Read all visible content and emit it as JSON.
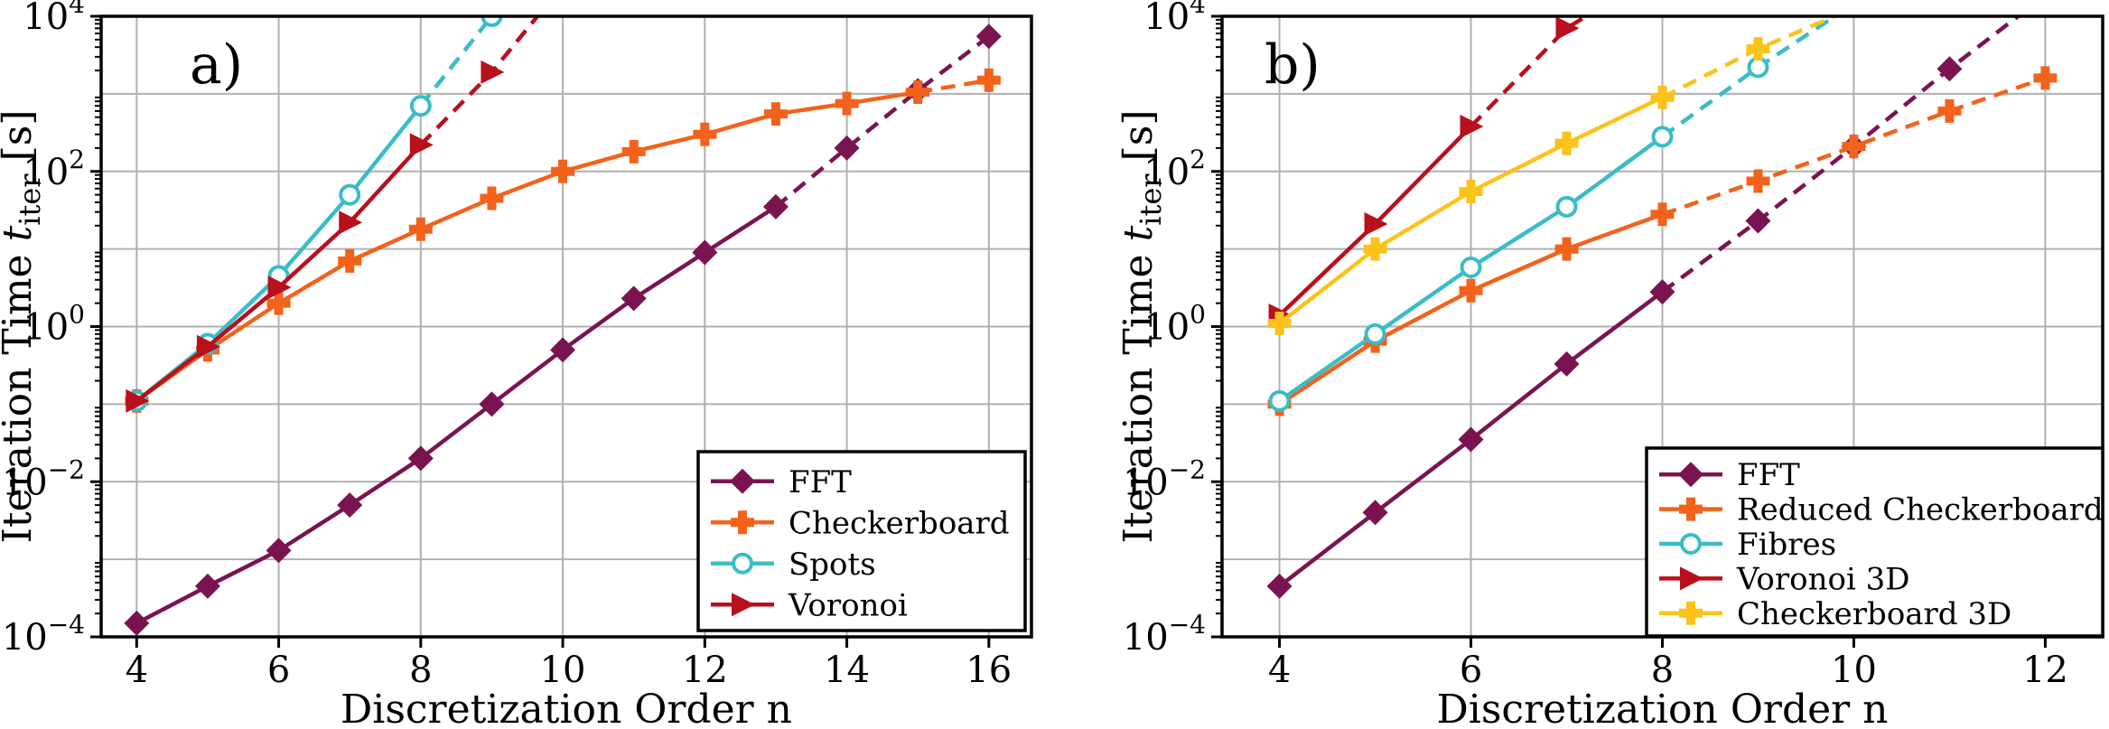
{
  "chart_data": [
    {
      "type": "line",
      "panel_label": "a)",
      "xlabel": "Discretization Order n",
      "ylabel": "Iteration Time t_iter [s]",
      "ylabel_parts": {
        "prefix": "Iteration Time ",
        "var": "t",
        "sub": "iter",
        "suffix": " [s]"
      },
      "y_scale": "log",
      "xlim": [
        3.5,
        16.6
      ],
      "ylim": [
        0.0001,
        10000
      ],
      "x_ticks": [
        4,
        6,
        8,
        10,
        12,
        14,
        16
      ],
      "y_ticks": [
        {
          "base": "10",
          "exp": "−4",
          "value": 0.0001
        },
        {
          "base": "10",
          "exp": "−2",
          "value": 0.01
        },
        {
          "base": "10",
          "exp": "0",
          "value": 1
        },
        {
          "base": "10",
          "exp": "2",
          "value": 100
        },
        {
          "base": "10",
          "exp": "4",
          "value": 10000
        }
      ],
      "grid": true,
      "legend_position": "bottom-right",
      "series": [
        {
          "name": "FFT",
          "color": "#7a1450",
          "marker": "diamond",
          "x": [
            4,
            5,
            6,
            7,
            8,
            9,
            10,
            11,
            12,
            13,
            14,
            15,
            16
          ],
          "y": [
            0.00015,
            0.00045,
            0.0013,
            0.005,
            0.02,
            0.1,
            0.5,
            2.3,
            9,
            35,
            200,
            1100,
            5500
          ],
          "solid_until": 13
        },
        {
          "name": "Checkerboard",
          "color": "#f3621b",
          "marker": "plus",
          "x": [
            4,
            5,
            6,
            7,
            8,
            9,
            10,
            11,
            12,
            13,
            14,
            15,
            16
          ],
          "y": [
            0.11,
            0.5,
            2,
            7,
            18,
            45,
            100,
            180,
            300,
            550,
            750,
            1050,
            1500
          ],
          "solid_until": 15
        },
        {
          "name": "Spots",
          "color": "#3bbcc8",
          "marker": "circle",
          "x": [
            4,
            5,
            6,
            7,
            8,
            9
          ],
          "y": [
            0.11,
            0.6,
            4.5,
            50,
            700,
            10000
          ],
          "solid_until": 8,
          "extension": {
            "x": 9.2,
            "y": 17000
          }
        },
        {
          "name": "Voronoi",
          "color": "#b8101c",
          "marker": "triangle-right",
          "x": [
            4,
            5,
            6,
            7,
            8,
            9
          ],
          "y": [
            0.11,
            0.55,
            3.2,
            22,
            220,
            1900
          ],
          "solid_until": 8,
          "extension": {
            "x": 9.85,
            "y": 17000
          }
        }
      ]
    },
    {
      "type": "line",
      "panel_label": "b)",
      "xlabel": "Discretization Order n",
      "ylabel": "Iteration Time t_iter [s]",
      "ylabel_parts": {
        "prefix": "Iteration Time ",
        "var": "t",
        "sub": "iter",
        "suffix": " [s]"
      },
      "y_scale": "log",
      "xlim": [
        3.4,
        12.6
      ],
      "ylim": [
        0.0001,
        10000
      ],
      "x_ticks": [
        4,
        6,
        8,
        10,
        12
      ],
      "y_ticks": [
        {
          "base": "10",
          "exp": "−4",
          "value": 0.0001
        },
        {
          "base": "10",
          "exp": "−2",
          "value": 0.01
        },
        {
          "base": "10",
          "exp": "0",
          "value": 1
        },
        {
          "base": "10",
          "exp": "2",
          "value": 100
        },
        {
          "base": "10",
          "exp": "4",
          "value": 10000
        }
      ],
      "grid": true,
      "legend_position": "bottom-right",
      "series": [
        {
          "name": "FFT",
          "color": "#7a1450",
          "marker": "diamond",
          "x": [
            4,
            5,
            6,
            7,
            8,
            9,
            10,
            11
          ],
          "y": [
            0.00045,
            0.004,
            0.035,
            0.33,
            2.8,
            23,
            210,
            2100
          ],
          "solid_until": 8,
          "extension": {
            "x": 11.8,
            "y": 12000
          }
        },
        {
          "name": "Reduced Checkerboard",
          "color": "#f3621b",
          "marker": "plus",
          "x": [
            4,
            5,
            6,
            7,
            8,
            9,
            10,
            11,
            12
          ],
          "y": [
            0.1,
            0.65,
            2.9,
            10,
            28,
            75,
            210,
            600,
            1600
          ],
          "solid_until": 8
        },
        {
          "name": "Fibres",
          "color": "#3bbcc8",
          "marker": "circle",
          "x": [
            4,
            5,
            6,
            7,
            8,
            9
          ],
          "y": [
            0.11,
            0.8,
            5.8,
            35,
            280,
            2200
          ],
          "solid_until": 8,
          "extension": {
            "x": 9.9,
            "y": 12000
          }
        },
        {
          "name": "Voronoi 3D",
          "color": "#b8101c",
          "marker": "triangle-right",
          "x": [
            4,
            5,
            6,
            7
          ],
          "y": [
            1.4,
            21,
            380,
            7000
          ],
          "solid_until": 6,
          "extension": {
            "x": 7.6,
            "y": 20000
          }
        },
        {
          "name": "Checkerboard 3D",
          "color": "#fbc31a",
          "marker": "plus",
          "x": [
            4,
            5,
            6,
            7,
            8,
            9
          ],
          "y": [
            1.1,
            10,
            55,
            230,
            900,
            3800
          ],
          "solid_until": 8,
          "extension": {
            "x": 9.95,
            "y": 12000
          }
        }
      ]
    }
  ]
}
